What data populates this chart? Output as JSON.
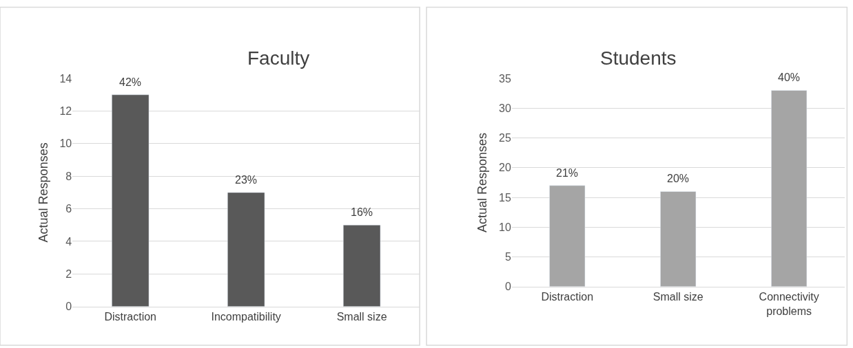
{
  "chart_data": [
    {
      "type": "bar",
      "title": "Faculty",
      "ylabel": "Actual Responses",
      "categories": [
        "Distraction",
        "Incompatibility",
        "Small size"
      ],
      "values": [
        13,
        7,
        5
      ],
      "color": "#595959",
      "annotations": [
        {
          "text": "42%",
          "x": "Distraction",
          "y": 13
        },
        {
          "text": "23%",
          "x": "Incompatibility",
          "y": 7
        },
        {
          "text": "16%",
          "x": "Small size",
          "y": 5
        }
      ],
      "ylim": [
        0,
        14
      ],
      "yticks": [
        0,
        2,
        4,
        6,
        8,
        10,
        12,
        14
      ],
      "grid": "y"
    },
    {
      "type": "bar",
      "title": "Students",
      "ylabel": "Actual Responses",
      "categories": [
        "Distraction",
        "Small size",
        "Connectivity problems"
      ],
      "values": [
        17,
        16,
        33
      ],
      "color": "#a5a5a5",
      "annotations": [
        {
          "text": "21%",
          "x": "Distraction",
          "y": 17
        },
        {
          "text": "20%",
          "x": "Small size",
          "y": 16
        },
        {
          "text": "40%",
          "x": "Connectivity problems",
          "y": 33
        }
      ],
      "ylim": [
        0,
        35
      ],
      "yticks": [
        0,
        5,
        10,
        15,
        20,
        25,
        30,
        35
      ],
      "grid": "y"
    }
  ]
}
